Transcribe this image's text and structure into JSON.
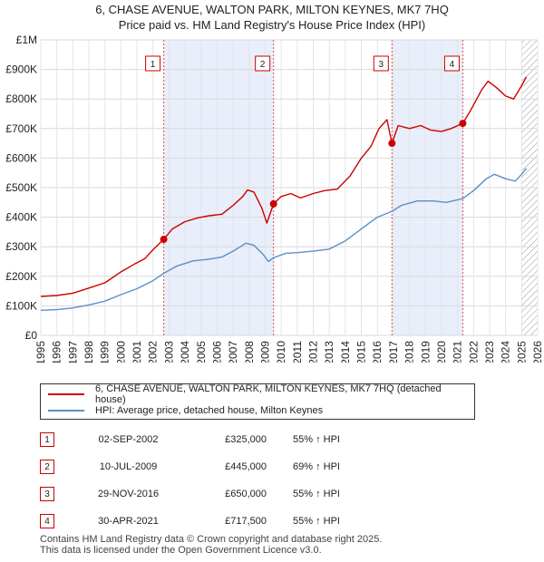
{
  "chart_data": {
    "type": "line",
    "title": "6, CHASE AVENUE, WALTON PARK, MILTON KEYNES, MK7 7HQ",
    "subtitle": "Price paid vs. HM Land Registry's House Price Index (HPI)",
    "xlim": [
      1995,
      2026
    ],
    "ylim": [
      0,
      1000000
    ],
    "y_ticks": [
      {
        "value": 0,
        "label": "£0"
      },
      {
        "value": 100000,
        "label": "£100K"
      },
      {
        "value": 200000,
        "label": "£200K"
      },
      {
        "value": 300000,
        "label": "£300K"
      },
      {
        "value": 400000,
        "label": "£400K"
      },
      {
        "value": 500000,
        "label": "£500K"
      },
      {
        "value": 600000,
        "label": "£600K"
      },
      {
        "value": 700000,
        "label": "£700K"
      },
      {
        "value": 800000,
        "label": "£800K"
      },
      {
        "value": 900000,
        "label": "£900K"
      },
      {
        "value": 1000000,
        "label": "£1M"
      }
    ],
    "x_ticks": [
      "1995",
      "1996",
      "1997",
      "1998",
      "1999",
      "2000",
      "2001",
      "2002",
      "2003",
      "2004",
      "2005",
      "2006",
      "2007",
      "2008",
      "2009",
      "2010",
      "2011",
      "2012",
      "2013",
      "2014",
      "2015",
      "2016",
      "2017",
      "2018",
      "2019",
      "2020",
      "2021",
      "2022",
      "2023",
      "2024",
      "2025",
      "2026"
    ],
    "series": [
      {
        "name": "6, CHASE AVENUE, WALTON PARK, MILTON KEYNES, MK7 7HQ (detached house)",
        "color": "#cc0000",
        "points": [
          [
            1995.0,
            132000
          ],
          [
            1996.0,
            135000
          ],
          [
            1997.0,
            143000
          ],
          [
            1998.0,
            160000
          ],
          [
            1999.0,
            178000
          ],
          [
            2000.0,
            215000
          ],
          [
            2000.8,
            240000
          ],
          [
            2001.5,
            260000
          ],
          [
            2002.0,
            290000
          ],
          [
            2002.67,
            325000
          ],
          [
            2003.2,
            360000
          ],
          [
            2004.0,
            385000
          ],
          [
            2004.8,
            398000
          ],
          [
            2005.5,
            405000
          ],
          [
            2006.3,
            410000
          ],
          [
            2007.0,
            440000
          ],
          [
            2007.6,
            470000
          ],
          [
            2007.9,
            492000
          ],
          [
            2008.3,
            485000
          ],
          [
            2008.8,
            430000
          ],
          [
            2009.1,
            380000
          ],
          [
            2009.52,
            445000
          ],
          [
            2010.0,
            470000
          ],
          [
            2010.6,
            480000
          ],
          [
            2011.2,
            465000
          ],
          [
            2012.0,
            480000
          ],
          [
            2012.7,
            490000
          ],
          [
            2013.5,
            495000
          ],
          [
            2014.3,
            540000
          ],
          [
            2015.0,
            600000
          ],
          [
            2015.6,
            640000
          ],
          [
            2016.1,
            700000
          ],
          [
            2016.6,
            730000
          ],
          [
            2016.91,
            650000
          ],
          [
            2017.3,
            710000
          ],
          [
            2018.0,
            700000
          ],
          [
            2018.7,
            710000
          ],
          [
            2019.3,
            695000
          ],
          [
            2020.0,
            690000
          ],
          [
            2020.6,
            700000
          ],
          [
            2021.33,
            717500
          ],
          [
            2021.8,
            760000
          ],
          [
            2022.5,
            830000
          ],
          [
            2022.9,
            860000
          ],
          [
            2023.4,
            840000
          ],
          [
            2024.0,
            810000
          ],
          [
            2024.5,
            800000
          ],
          [
            2025.0,
            845000
          ],
          [
            2025.3,
            875000
          ]
        ]
      },
      {
        "name": "HPI: Average price, detached house, Milton Keynes",
        "color": "#5b8fc9",
        "points": [
          [
            1995.0,
            85000
          ],
          [
            1996.0,
            87000
          ],
          [
            1997.0,
            93000
          ],
          [
            1998.0,
            103000
          ],
          [
            1999.0,
            116000
          ],
          [
            2000.0,
            138000
          ],
          [
            2001.0,
            158000
          ],
          [
            2002.0,
            185000
          ],
          [
            2002.67,
            210000
          ],
          [
            2003.5,
            235000
          ],
          [
            2004.5,
            252000
          ],
          [
            2005.5,
            258000
          ],
          [
            2006.3,
            265000
          ],
          [
            2007.0,
            285000
          ],
          [
            2007.8,
            312000
          ],
          [
            2008.3,
            305000
          ],
          [
            2008.9,
            272000
          ],
          [
            2009.2,
            250000
          ],
          [
            2009.52,
            263000
          ],
          [
            2010.3,
            278000
          ],
          [
            2011.0,
            280000
          ],
          [
            2012.0,
            285000
          ],
          [
            2013.0,
            292000
          ],
          [
            2014.0,
            320000
          ],
          [
            2015.0,
            360000
          ],
          [
            2016.0,
            400000
          ],
          [
            2016.91,
            420000
          ],
          [
            2017.5,
            440000
          ],
          [
            2018.5,
            455000
          ],
          [
            2019.5,
            455000
          ],
          [
            2020.3,
            450000
          ],
          [
            2021.33,
            463000
          ],
          [
            2022.0,
            490000
          ],
          [
            2022.8,
            530000
          ],
          [
            2023.3,
            545000
          ],
          [
            2024.0,
            530000
          ],
          [
            2024.6,
            522000
          ],
          [
            2025.0,
            545000
          ],
          [
            2025.3,
            565000
          ]
        ]
      }
    ],
    "sales": [
      {
        "id": "1",
        "x": 2002.67,
        "y": 325000
      },
      {
        "id": "2",
        "x": 2009.52,
        "y": 445000
      },
      {
        "id": "3",
        "x": 2016.91,
        "y": 650000
      },
      {
        "id": "4",
        "x": 2021.33,
        "y": 717500
      }
    ],
    "shaded_ranges": [
      [
        2002.67,
        2009.52
      ],
      [
        2016.91,
        2021.33
      ]
    ],
    "hatch_from": 2025.0
  },
  "legend": {
    "items": [
      {
        "label": "6, CHASE AVENUE, WALTON PARK, MILTON KEYNES, MK7 7HQ (detached house)",
        "color": "#cc0000"
      },
      {
        "label": "HPI: Average price, detached house, Milton Keynes",
        "color": "#5b8fc9"
      }
    ]
  },
  "transactions": [
    {
      "num": "1",
      "date": "02-SEP-2002",
      "price": "£325,000",
      "hpi": "55% ↑ HPI"
    },
    {
      "num": "2",
      "date": "10-JUL-2009",
      "price": "£445,000",
      "hpi": "69% ↑ HPI"
    },
    {
      "num": "3",
      "date": "29-NOV-2016",
      "price": "£650,000",
      "hpi": "55% ↑ HPI"
    },
    {
      "num": "4",
      "date": "30-APR-2021",
      "price": "£717,500",
      "hpi": "55% ↑ HPI"
    }
  ],
  "footer": {
    "line1": "Contains HM Land Registry data © Crown copyright and database right 2025.",
    "line2": "This data is licensed under the Open Government Licence v3.0."
  }
}
